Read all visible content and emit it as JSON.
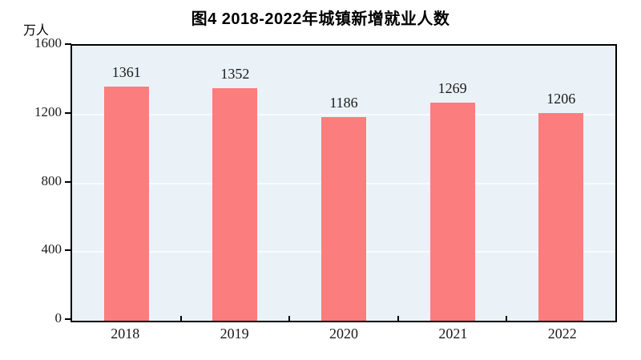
{
  "chart_data": {
    "type": "bar",
    "title": "图4  2018-2022年城镇新增就业人数",
    "unit_label": "万人",
    "categories": [
      "2018",
      "2019",
      "2020",
      "2021",
      "2022"
    ],
    "values": [
      1361,
      1352,
      1186,
      1269,
      1206
    ],
    "ylim": [
      0,
      1600
    ],
    "yticks": [
      0,
      400,
      800,
      1200,
      1600
    ],
    "grid": true,
    "legend": "none",
    "colors": {
      "bar": "#FB7D7D",
      "plot_background": "#EBF2F7",
      "gridline": "#F8FBFD",
      "axis_frame": "#000000",
      "text": "#000000",
      "page_background": "#FFFFFF"
    }
  }
}
